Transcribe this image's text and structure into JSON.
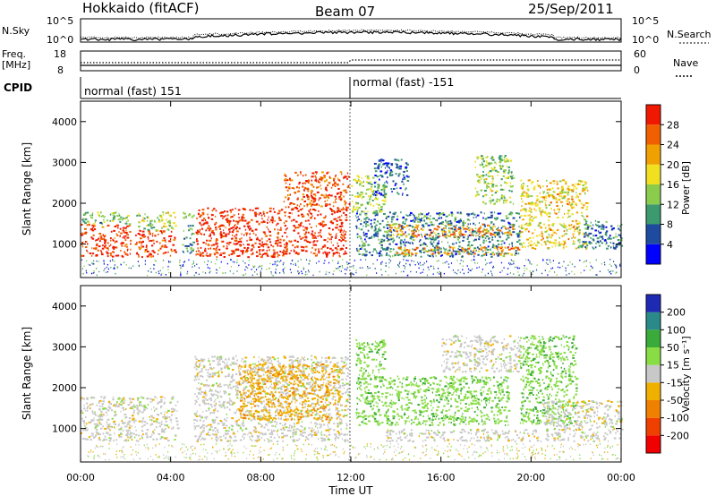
{
  "header": {
    "radar": "Hokkaido (fitACF)",
    "beam": "Beam 07",
    "date": "25/Sep/2011"
  },
  "noise_panel": {
    "left_label": "N.Sky",
    "right_label": "N.Search",
    "left_ticks": [
      "10^5",
      "10^0"
    ],
    "right_ticks": [
      "10^5",
      "10^0"
    ]
  },
  "freq_panel": {
    "left_label_line1": "Freq.",
    "left_label_line2": "[MHz]",
    "right_label": "Nave",
    "left_ticks": [
      "18",
      "8"
    ],
    "right_ticks": [
      "60",
      "0"
    ]
  },
  "cpid_panel": {
    "label": "CPID",
    "segments": [
      "normal (fast) 151",
      "normal (fast) -151"
    ]
  },
  "axes": {
    "ylabel": "Slant Range [km]",
    "xlabel": "Time UT",
    "xticks": [
      "00:00",
      "04:00",
      "08:00",
      "12:00",
      "16:00",
      "20:00",
      "00:00"
    ],
    "yticks": [
      "1000",
      "2000",
      "3000",
      "4000"
    ]
  },
  "power_colorbar": {
    "title": "Power [dB]",
    "ticks": [
      "28",
      "24",
      "20",
      "16",
      "12",
      "8",
      "4"
    ],
    "colors": [
      "#0000ff",
      "#1e4ba0",
      "#3c9a6e",
      "#8ccc4c",
      "#f0e020",
      "#f0a000",
      "#f06000",
      "#f01800"
    ]
  },
  "velocity_colorbar": {
    "title": "Velocity [m s⁻¹]",
    "ticks": [
      "200",
      "100",
      "50",
      "15",
      "-15",
      "-50",
      "-100",
      "-200"
    ],
    "colors": [
      "#1e2ab4",
      "#2a8a8a",
      "#3aaa3a",
      "#88dd44",
      "#c8c8c8",
      "#f0b000",
      "#f08000",
      "#f04000",
      "#f00000"
    ]
  },
  "chart_data": [
    {
      "type": "heatmap",
      "title": "Power",
      "xlabel": "Time UT",
      "ylabel": "Slant Range [km]",
      "x_unit": "hours UT",
      "xlim": [
        0,
        24
      ],
      "ylim": [
        180,
        4500
      ],
      "colorbar_label": "Power [dB]",
      "colorbar_range": [
        0,
        30
      ],
      "echo_regions": [
        {
          "t_start": 0.0,
          "t_end": 2.2,
          "r_low": 700,
          "r_high": 1500,
          "value": 27
        },
        {
          "t_start": 0.0,
          "t_end": 2.2,
          "r_low": 1500,
          "r_high": 1800,
          "value": 12
        },
        {
          "t_start": 2.4,
          "t_end": 4.2,
          "r_low": 700,
          "r_high": 1350,
          "value": 27
        },
        {
          "t_start": 2.4,
          "t_end": 4.2,
          "r_low": 1350,
          "r_high": 1800,
          "value": 14
        },
        {
          "t_start": 4.5,
          "t_end": 5.0,
          "r_low": 800,
          "r_high": 1800,
          "value": 10
        },
        {
          "t_start": 5.1,
          "t_end": 11.8,
          "r_low": 700,
          "r_high": 1900,
          "value": 28
        },
        {
          "t_start": 9.0,
          "t_end": 11.9,
          "r_low": 1900,
          "r_high": 2800,
          "value": 26
        },
        {
          "t_start": 12.0,
          "t_end": 13.5,
          "r_low": 1800,
          "r_high": 2700,
          "value": 14
        },
        {
          "t_start": 13.0,
          "t_end": 14.5,
          "r_low": 2200,
          "r_high": 3100,
          "value": 6
        },
        {
          "t_start": 12.2,
          "t_end": 19.5,
          "r_low": 700,
          "r_high": 1800,
          "value": 8
        },
        {
          "t_start": 13.6,
          "t_end": 19.2,
          "r_low": 1200,
          "r_high": 1500,
          "value": 22
        },
        {
          "t_start": 14.0,
          "t_end": 19.5,
          "r_low": 750,
          "r_high": 950,
          "value": 22
        },
        {
          "t_start": 17.5,
          "t_end": 19.2,
          "r_low": 2000,
          "r_high": 3200,
          "value": 14
        },
        {
          "t_start": 19.5,
          "t_end": 22.5,
          "r_low": 900,
          "r_high": 2600,
          "value": 18
        },
        {
          "t_start": 22.0,
          "t_end": 24.0,
          "r_low": 900,
          "r_high": 1600,
          "value": 8
        }
      ]
    },
    {
      "type": "heatmap",
      "title": "Velocity",
      "xlabel": "Time UT",
      "ylabel": "Slant Range [km]",
      "x_unit": "hours UT",
      "xlim": [
        0,
        24
      ],
      "ylim": [
        180,
        4500
      ],
      "colorbar_label": "Velocity [m s⁻¹]",
      "colorbar_range": [
        -250,
        250
      ],
      "echo_regions": [
        {
          "t_start": 0.0,
          "t_end": 4.3,
          "r_low": 700,
          "r_high": 1800,
          "value": 0
        },
        {
          "t_start": 5.0,
          "t_end": 11.9,
          "r_low": 700,
          "r_high": 2800,
          "value": 0
        },
        {
          "t_start": 7.0,
          "t_end": 11.5,
          "r_low": 1200,
          "r_high": 2600,
          "value": -40
        },
        {
          "t_start": 12.2,
          "t_end": 19.0,
          "r_low": 1100,
          "r_high": 2300,
          "value": 40
        },
        {
          "t_start": 12.2,
          "t_end": 13.5,
          "r_low": 2300,
          "r_high": 3200,
          "value": 40
        },
        {
          "t_start": 13.5,
          "t_end": 20.5,
          "r_low": 700,
          "r_high": 1000,
          "value": 0
        },
        {
          "t_start": 16.0,
          "t_end": 19.5,
          "r_low": 2400,
          "r_high": 3300,
          "value": 0
        },
        {
          "t_start": 19.5,
          "t_end": 22.0,
          "r_low": 1100,
          "r_high": 3300,
          "value": 40
        },
        {
          "t_start": 20.5,
          "t_end": 24.0,
          "r_low": 700,
          "r_high": 1700,
          "value": 0
        }
      ]
    }
  ]
}
